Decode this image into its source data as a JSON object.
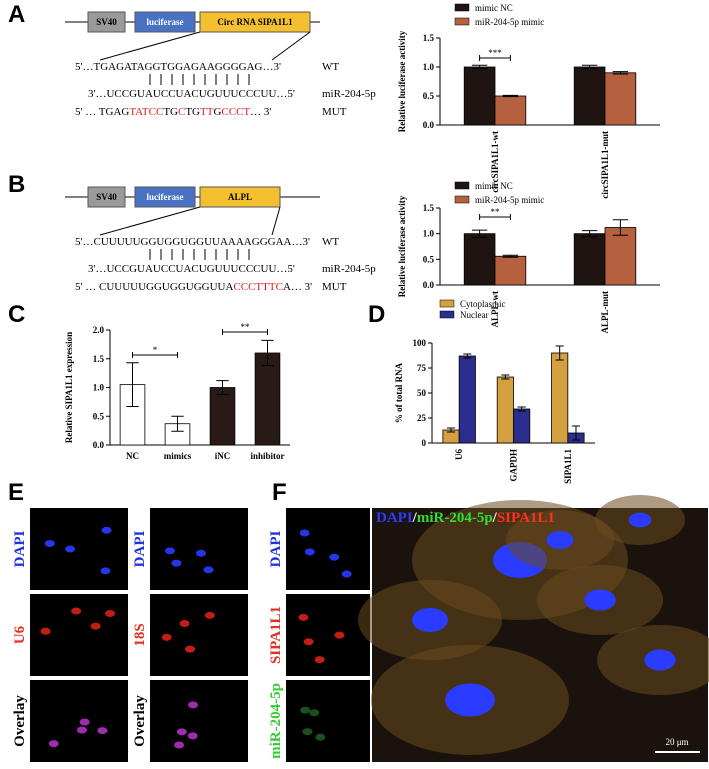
{
  "panel_labels": [
    "A",
    "B",
    "C",
    "D",
    "E",
    "F"
  ],
  "diagram_a": {
    "boxes": [
      "SV40",
      "luciferase",
      "Circ RNA SIPA1L1"
    ],
    "wt": "5'…TGAGATAGGTGGAGAAGGGGAG…3'",
    "wt_label": "WT",
    "mir": "3'…UCCGUAUCCUACUGUUUCCCUU…5'",
    "mir_label": "miR-204-5p",
    "mut_segments": [
      {
        "text": "5' … TGAG",
        "mutated": false
      },
      {
        "text": "TATCC",
        "mutated": true
      },
      {
        "text": "TG",
        "mutated": false
      },
      {
        "text": "C",
        "mutated": true
      },
      {
        "text": "TG",
        "mutated": false
      },
      {
        "text": "TT",
        "mutated": true
      },
      {
        "text": "G",
        "mutated": false
      },
      {
        "text": "CCCT",
        "mutated": true
      },
      {
        "text": "… 3'",
        "mutated": false
      }
    ],
    "mut_label": "MUT",
    "mut_color": "#e02020"
  },
  "diagram_b": {
    "boxes": [
      "SV40",
      "luciferase",
      "ALPL"
    ],
    "wt": "5'…CUUUUUGGUGGUGGUUAAAAGGGAA…3'",
    "wt_label": "WT",
    "mir": "3'…UCCGUAUCCUACUGUUUCCCUU…5'",
    "mir_label": "miR-204-5p",
    "mut_segments": [
      {
        "text": "5' … CUUUUUGGUGGUGGUUA",
        "mutated": false
      },
      {
        "text": "CCCTTTC",
        "mutated": true
      },
      {
        "text": "A… 3'",
        "mutated": false
      }
    ],
    "mut_label": "MUT",
    "mut_color": "#e02020"
  },
  "chart_data": [
    {
      "type": "bar",
      "ylabel": "Relative luciferase activity",
      "categories": [
        "circSIPA1L1-wt",
        "circSIPA1L1-mut"
      ],
      "series": [
        {
          "name": "mimic NC",
          "color": "#1f1412",
          "values": [
            1.0,
            1.0
          ],
          "errors": [
            0.03,
            0.03
          ]
        },
        {
          "name": "miR-204-5p mimic",
          "color": "#b5613f",
          "values": [
            0.5,
            0.9
          ],
          "errors": [
            0.01,
            0.02
          ]
        }
      ],
      "ylim": [
        0,
        1.5
      ],
      "yticks": [
        {
          "value": 0,
          "label": "0.0"
        },
        0.5,
        {
          "value": 1,
          "label": "1.0"
        },
        1.5
      ],
      "annotations": [
        "***"
      ]
    },
    {
      "type": "bar",
      "ylabel": "Relative luciferase activity",
      "categories": [
        "ALPL-wt",
        "ALPL-mut"
      ],
      "series": [
        {
          "name": "mimic NC",
          "color": "#1f1412",
          "values": [
            1.0,
            1.0
          ],
          "errors": [
            0.07,
            0.06
          ]
        },
        {
          "name": "miR-204-5p mimic",
          "color": "#b5613f",
          "values": [
            0.56,
            1.12
          ],
          "errors": [
            0.02,
            0.15
          ]
        }
      ],
      "ylim": [
        0,
        1.5
      ],
      "yticks": [
        {
          "value": 0,
          "label": "0.0"
        },
        0.5,
        {
          "value": 1,
          "label": "1.0"
        },
        1.5
      ],
      "annotations": [
        "**"
      ]
    },
    {
      "type": "bar",
      "ylabel": "Relative SIPA1L1 expression",
      "categories": [
        "NC",
        "mimics",
        "iNC",
        "inhibitor"
      ],
      "values": [
        1.05,
        0.37,
        1.0,
        1.6
      ],
      "errors": [
        0.38,
        0.13,
        0.12,
        0.22
      ],
      "colors": [
        "#ffffff",
        "#ffffff",
        "#2a1a17",
        "#2a1a17"
      ],
      "ylim": [
        0,
        2
      ],
      "yticks": [
        {
          "value": 0,
          "label": "0.0"
        },
        0.5,
        {
          "value": 1,
          "label": "1.0"
        },
        1.5,
        {
          "value": 2,
          "label": "2.0"
        }
      ],
      "annotations": [
        "*",
        "**"
      ]
    },
    {
      "type": "bar",
      "ylabel": "% of total RNA",
      "categories": [
        "U6",
        "GAPDH",
        "SIPA1L1"
      ],
      "series": [
        {
          "name": "Cytoplasmic",
          "color": "#d4a040",
          "values": [
            13,
            66,
            90
          ],
          "errors": [
            2,
            2,
            7
          ]
        },
        {
          "name": "Nuclear",
          "color": "#2a2f8f",
          "values": [
            87,
            34,
            10
          ],
          "errors": [
            2,
            2,
            7
          ]
        }
      ],
      "ylim": [
        0,
        100
      ],
      "yticks": [
        0,
        25,
        50,
        75,
        100
      ]
    }
  ],
  "images": {
    "e_labels": [
      {
        "text": "DAPI",
        "color": "#2233dd"
      },
      {
        "text": "U6",
        "color": "#e03020"
      },
      {
        "text": "Overlay",
        "color": "#000000"
      },
      {
        "text": "DAPI",
        "color": "#2233dd"
      },
      {
        "text": "18S",
        "color": "#e03020"
      },
      {
        "text": "Overlay",
        "color": "#000000"
      }
    ],
    "f_labels": [
      {
        "text": "DAPI",
        "color": "#2233dd"
      },
      {
        "text": "SIPA1L1",
        "color": "#e03020"
      },
      {
        "text": "miR-204-5p",
        "color": "#33cc33"
      }
    ],
    "f_title": [
      {
        "text": "DAPI",
        "color": "#2a3cff"
      },
      {
        "text": "/",
        "color": "#ffffff"
      },
      {
        "text": "miR-204-5p",
        "color": "#33dd33"
      },
      {
        "text": "/",
        "color": "#ffffff"
      },
      {
        "text": "SIPA1L1",
        "color": "#ff3020"
      }
    ],
    "scale_bar": "20 μm"
  }
}
